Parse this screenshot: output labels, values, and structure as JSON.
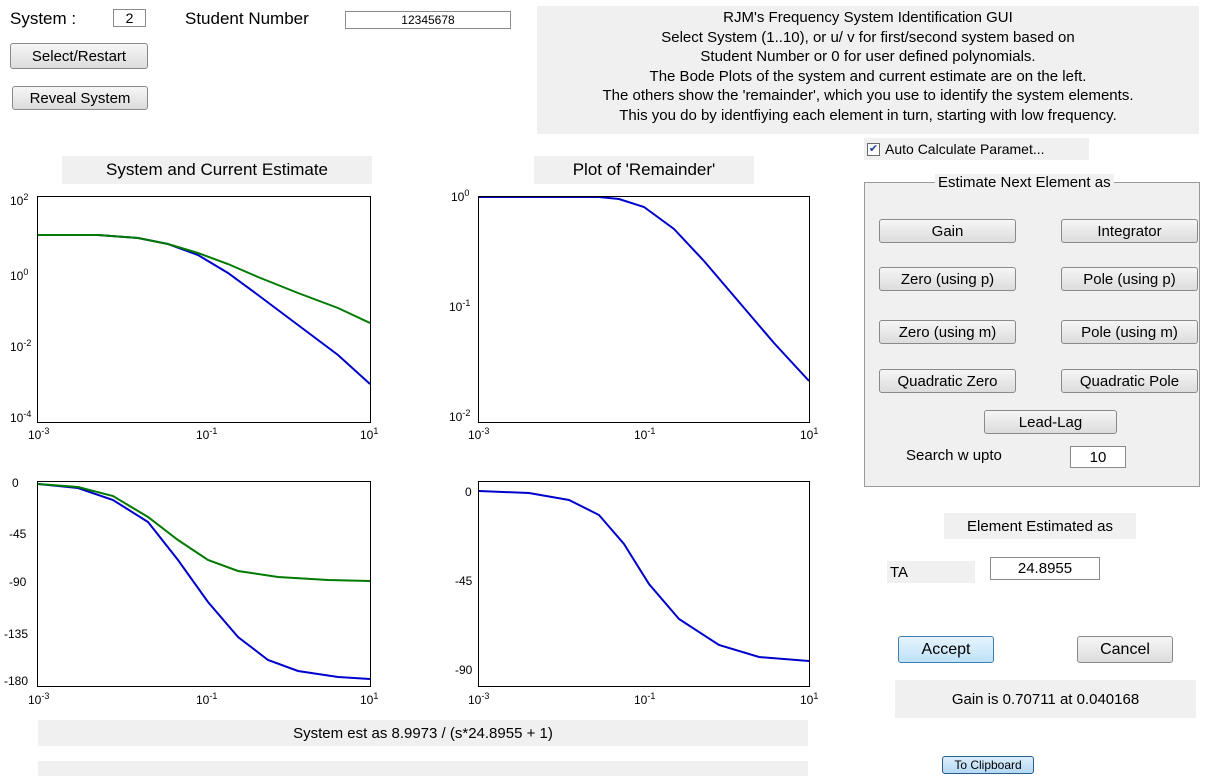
{
  "header": {
    "system_label": "System :",
    "system_value": "2",
    "student_label": "Student Number",
    "student_value": "12345678",
    "select_restart": "Select/Restart",
    "reveal_system": "Reveal System"
  },
  "info_lines": [
    "RJM's Frequency System Identification GUI",
    "Select System (1..10), or u/ v for first/second system based on",
    "Student Number or 0 for user defined polynomials.",
    "The Bode Plots of the system and current estimate are on the left.",
    "The others show the 'remainder', which you use to identify the system elements.",
    "This you do by identfiying each element in turn, starting with low frequency."
  ],
  "left_title": "System and Current Estimate",
  "right_title": "Plot of 'Remainder'",
  "ticks": {
    "x_base": "10",
    "x_exp": [
      "-3",
      "-1",
      "1"
    ],
    "mag_left_exp": [
      "2",
      "0",
      "-2",
      "-4"
    ],
    "mag_right_exp": [
      "0",
      "-1",
      "-2"
    ],
    "phase_left": [
      "0",
      "-45",
      "-90",
      "-135",
      "-180"
    ],
    "phase_right": [
      "0",
      "-45",
      "-90"
    ]
  },
  "estimate_text": "System  est as 8.9973 / (s*24.8955 + 1)",
  "bottom_bar_text": "",
  "auto_calc": {
    "label": "Auto Calculate Paramet...",
    "checked": true
  },
  "panel": {
    "title": "Estimate Next Element as",
    "gain": "Gain",
    "integrator": "Integrator",
    "zero_p": "Zero (using p)",
    "pole_p": "Pole (using p)",
    "zero_m": "Zero (using m)",
    "pole_m": "Pole (using m)",
    "quad_zero": "Quadratic Zero",
    "quad_pole": "Quadratic Pole",
    "lead_lag": "Lead-Lag",
    "search_label": "Search w upto",
    "search_value": "10"
  },
  "element": {
    "title": "Element Estimated as",
    "param_label": "TA",
    "param_value": "24.8955",
    "accept": "Accept",
    "cancel": "Cancel",
    "gain_text": "Gain is 0.70711 at 0.040168",
    "clipboard": "To Clipboard"
  },
  "colors": {
    "system": "#0000cc",
    "estimate": "#007a00",
    "panel_bg": "#f0f0f0"
  }
}
